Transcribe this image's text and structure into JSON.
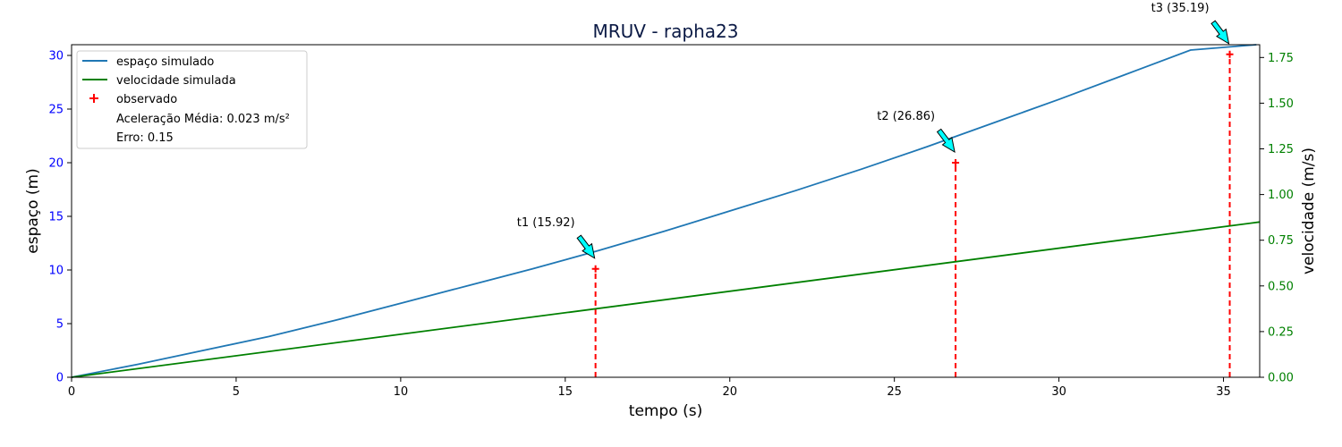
{
  "chart_data": {
    "type": "line",
    "title": "MRUV - rapha23",
    "xlabel": "tempo (s)",
    "ylabel": "espaço (m)",
    "ylabel_right": "velocidade (m/s)",
    "xlim": [
      0,
      36.1
    ],
    "ylim": [
      0,
      31
    ],
    "ylim_right": [
      0,
      1.82
    ],
    "x_ticks": [
      0,
      5,
      10,
      15,
      20,
      25,
      30,
      35
    ],
    "y_ticks": [
      0,
      5,
      10,
      15,
      20,
      25,
      30
    ],
    "y_right_ticks": [
      "0.00",
      "0.25",
      "0.50",
      "0.75",
      "1.00",
      "1.25",
      "1.50",
      "1.75"
    ],
    "grid": false,
    "legend_position": "upper-left",
    "series": [
      {
        "name": "espaço simulado",
        "axis": "left",
        "color": "#1f77b4",
        "x": [
          0,
          2,
          4,
          6,
          8,
          10,
          12,
          14,
          16,
          18,
          20,
          22,
          24,
          26,
          28,
          30,
          32,
          34,
          36
        ],
        "values": [
          0,
          1.2,
          2.5,
          3.8,
          5.3,
          6.9,
          8.5,
          10.1,
          11.8,
          13.6,
          15.5,
          17.4,
          19.4,
          21.5,
          23.7,
          25.9,
          28.2,
          30.5,
          31.0
        ]
      },
      {
        "name": "velocidade simulada",
        "axis": "right",
        "color": "#008000",
        "x": [
          0,
          36.1
        ],
        "values": [
          0,
          0.85
        ]
      }
    ],
    "observed": {
      "name": "observado",
      "color": "#ff0000",
      "x": [
        15.92,
        26.86,
        35.19
      ],
      "values": [
        10.1,
        20.0,
        30.1
      ]
    },
    "legend_notes": [
      "Aceleração Média: 0.023 m/s²",
      "Erro: 0.15"
    ],
    "annotations": [
      {
        "label": "t1 (15.92)",
        "x": 15.92,
        "y": 10.1
      },
      {
        "label": "t2 (26.86)",
        "x": 26.86,
        "y": 20.0
      },
      {
        "label": "t3 (35.19)",
        "x": 35.19,
        "y": 30.1
      }
    ],
    "colors": {
      "left_axis_ticks": "#0000ff",
      "right_axis_ticks": "#008000",
      "title": "#0b1a45",
      "arrow_fill": "#00ffff"
    }
  }
}
